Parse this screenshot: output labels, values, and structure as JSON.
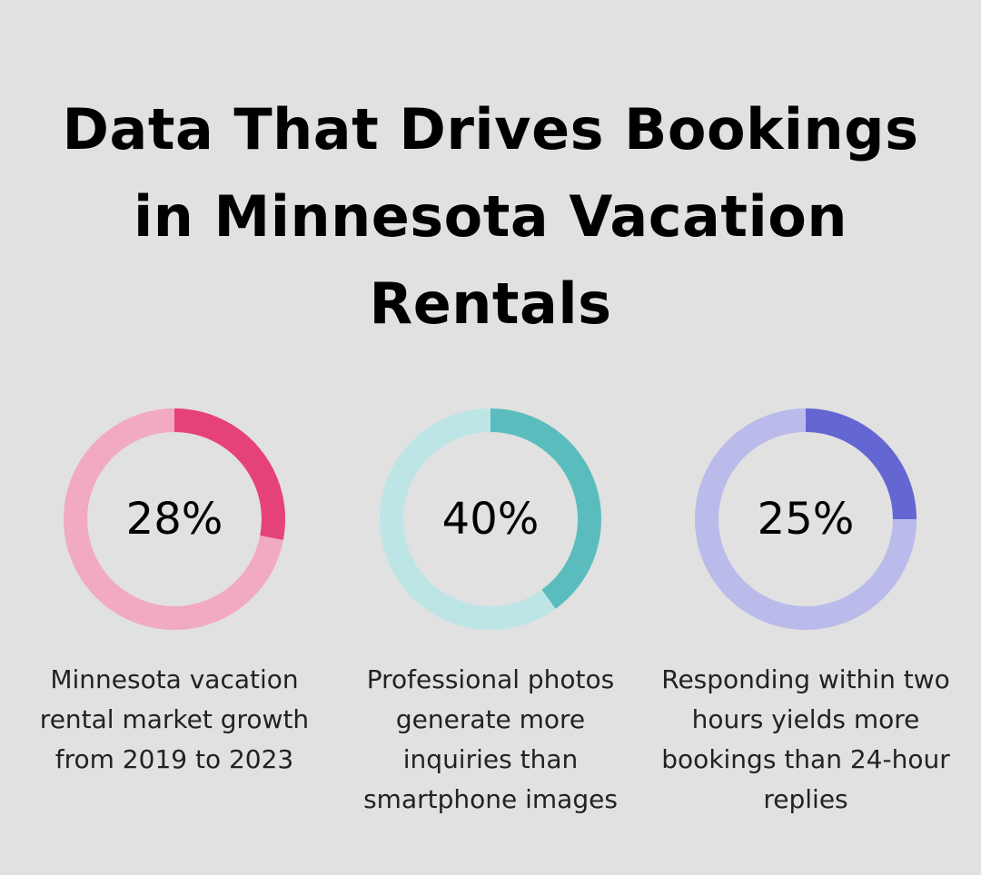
{
  "title": "Data That Drives Bookings in Minnesota Vacation Rentals",
  "chart_data": [
    {
      "type": "pie",
      "value": 28,
      "label": "28%",
      "caption": "Minnesota vacation rental market growth from 2019 to 2023",
      "color": "#e5427a",
      "track_color": "#f2a9c2"
    },
    {
      "type": "pie",
      "value": 40,
      "label": "40%",
      "caption": "Professional photos generate more inquiries than smartphone images",
      "color": "#5bbcbe",
      "track_color": "#bde5e6"
    },
    {
      "type": "pie",
      "value": 25,
      "label": "25%",
      "caption": "Responding within two hours yields more bookings than 24-hour replies",
      "color": "#6466d1",
      "track_color": "#babbea"
    }
  ]
}
